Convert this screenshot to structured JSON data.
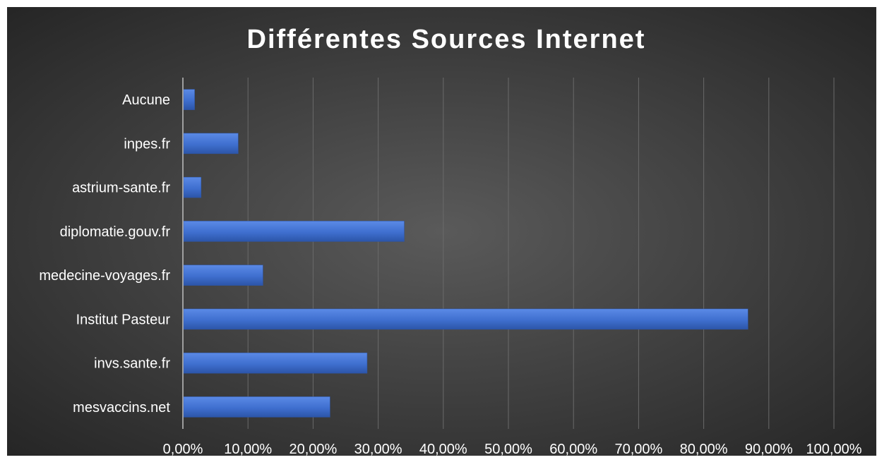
{
  "chart_data": {
    "type": "bar",
    "orientation": "horizontal",
    "title": "Différentes Sources Internet",
    "xlabel": "",
    "ylabel": "",
    "categories": [
      "Aucune",
      "inpes.fr",
      "astrium-sante.fr",
      "diplomatie.gouv.fr",
      "medecine-voyages.fr",
      "Institut Pasteur",
      "invs.sante.fr",
      "mesvaccins.net"
    ],
    "values": [
      1.8,
      8.5,
      2.8,
      34.0,
      12.3,
      86.8,
      28.3,
      22.6
    ],
    "xlim": [
      0,
      100
    ],
    "xticks": [
      0,
      10,
      20,
      30,
      40,
      50,
      60,
      70,
      80,
      90,
      100
    ],
    "xtick_labels": [
      "0,00%",
      "10,00%",
      "20,00%",
      "30,00%",
      "40,00%",
      "50,00%",
      "60,00%",
      "70,00%",
      "80,00%",
      "90,00%",
      "100,00%"
    ],
    "grid": true,
    "legend": "none",
    "colors": {
      "background_center": "#5a5a5a",
      "background_edge": "#262626",
      "bar": "#3f6fcf",
      "bar_light": "#5b8ae6",
      "bar_dark": "#2c55a8",
      "text": "#ffffff",
      "gridline": "#6a6a6a"
    }
  }
}
